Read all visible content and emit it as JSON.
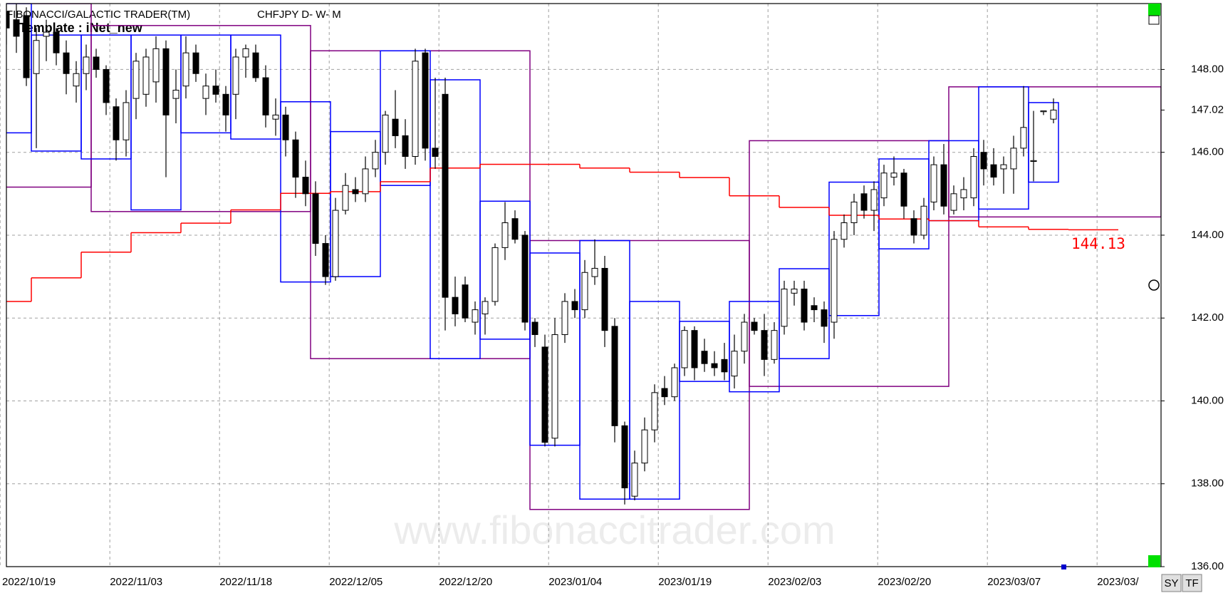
{
  "chart_data": {
    "type": "candlestick",
    "title": "FIBONACCI/GALACTIC TRADER(TM)",
    "symbol": "CHFJPY D- W- M",
    "template": "Template : iNet_new",
    "watermark": "www.fibonaccitrader.com",
    "categories": [
      "2022/10/19",
      null,
      null,
      null,
      null,
      null,
      null,
      null,
      null,
      null,
      null,
      "2022/11/03",
      null,
      null,
      null,
      null,
      null,
      null,
      null,
      null,
      null,
      null,
      "2022/11/18",
      null,
      null,
      null,
      null,
      null,
      null,
      null,
      null,
      null,
      null,
      "2022/12/05",
      null,
      null,
      null,
      null,
      null,
      null,
      null,
      null,
      null,
      null,
      "2022/12/20",
      null,
      null,
      null,
      null,
      null,
      null,
      null,
      null,
      null,
      null,
      "2023/01/04",
      null,
      null,
      null,
      null,
      null,
      null,
      null,
      null,
      null,
      null,
      "2023/01/19",
      null,
      null,
      null,
      null,
      null,
      null,
      null,
      null,
      null,
      null,
      "2023/02/03",
      null,
      null,
      null,
      null,
      null,
      null,
      null,
      null,
      null,
      null,
      "2023/02/20",
      null,
      null,
      null,
      null,
      null,
      null,
      null,
      null,
      null,
      null,
      "2023/03/07",
      null,
      null,
      null,
      null,
      null,
      null,
      null,
      null,
      null,
      null,
      "2023/03/",
      null
    ],
    "open": [
      149.4,
      149.2,
      149.3,
      147.9,
      148.8,
      148.9,
      148.4,
      147.6,
      147.9,
      148.3,
      148.0,
      147.1,
      146.3,
      147.3,
      147.4,
      147.7,
      148.5,
      147.3,
      147.6,
      148.4,
      147.3,
      147.6,
      147.4,
      147.4,
      148.3,
      148.4,
      147.8,
      146.8,
      146.9,
      146.3,
      145.4,
      145.0,
      143.8,
      143.0,
      144.6,
      145.1,
      145.0,
      145.6,
      146.0,
      146.8,
      146.4,
      145.9,
      148.4,
      146.1,
      147.4,
      142.5,
      142.8,
      141.9,
      142.1,
      142.4,
      143.7,
      144.4,
      144.0,
      141.9,
      141.3,
      139.1,
      141.6,
      142.4,
      142.2,
      143.0,
      143.2,
      141.8,
      139.4,
      137.7,
      138.5,
      139.3,
      140.3,
      140.1,
      140.8,
      141.7,
      141.2,
      140.9,
      141.0,
      140.6,
      141.2,
      141.9,
      141.7,
      141.0,
      141.8,
      142.6,
      142.7,
      142.3,
      142.2,
      141.9,
      143.9,
      144.3,
      145.0,
      144.6,
      144.9,
      145.4,
      145.5,
      144.4,
      144.0,
      144.8,
      145.7,
      144.6,
      144.9,
      144.9,
      146.0,
      145.7,
      145.6,
      145.6,
      146.1,
      145.8,
      147.0,
      146.8,
      null,
      null,
      null,
      null,
      null,
      null
    ],
    "high": [
      149.6,
      149.6,
      149.5,
      149.0,
      149.2,
      149.0,
      148.7,
      148.2,
      148.6,
      148.5,
      148.1,
      147.3,
      147.5,
      148.4,
      148.5,
      148.8,
      148.7,
      148.0,
      148.8,
      148.6,
      147.9,
      148.0,
      147.6,
      148.5,
      148.6,
      148.6,
      148.1,
      147.3,
      147.1,
      146.5,
      145.8,
      145.3,
      144.0,
      144.9,
      145.5,
      145.4,
      145.9,
      146.3,
      147.0,
      147.5,
      146.8,
      148.5,
      148.5,
      147.8,
      147.8,
      143.0,
      143.0,
      142.4,
      142.5,
      143.8,
      144.8,
      144.6,
      144.1,
      142.0,
      141.6,
      142.0,
      142.6,
      142.7,
      143.4,
      143.9,
      143.5,
      142.0,
      139.5,
      138.8,
      139.6,
      140.4,
      140.6,
      140.9,
      141.8,
      141.8,
      141.5,
      141.2,
      141.4,
      141.6,
      142.1,
      142.0,
      142.1,
      141.9,
      142.9,
      142.9,
      142.9,
      142.5,
      142.4,
      144.1,
      144.5,
      145.0,
      145.2,
      145.3,
      145.7,
      145.9,
      145.6,
      144.6,
      144.9,
      145.9,
      146.2,
      145.2,
      145.4,
      146.1,
      146.3,
      146.1,
      145.9,
      146.4,
      147.6,
      147.0,
      147.0,
      147.3,
      null,
      null,
      null,
      null,
      null,
      null
    ],
    "low": [
      148.6,
      148.4,
      147.6,
      146.1,
      148.2,
      148.1,
      147.4,
      147.2,
      147.5,
      147.8,
      146.9,
      145.8,
      145.9,
      146.8,
      147.1,
      147.2,
      145.4,
      146.7,
      147.3,
      147.7,
      146.9,
      147.2,
      146.5,
      146.8,
      147.8,
      147.7,
      146.6,
      146.4,
      145.9,
      144.9,
      144.7,
      143.5,
      142.8,
      142.9,
      144.5,
      144.8,
      144.8,
      145.4,
      145.7,
      146.1,
      145.6,
      145.7,
      145.8,
      145.6,
      141.7,
      141.8,
      141.9,
      141.6,
      141.6,
      142.3,
      143.4,
      143.8,
      141.7,
      141.3,
      138.9,
      138.9,
      141.4,
      142.0,
      142.0,
      142.8,
      141.3,
      139.0,
      137.5,
      137.6,
      138.3,
      139.0,
      139.9,
      140.0,
      140.6,
      140.5,
      140.7,
      140.6,
      140.5,
      140.3,
      140.9,
      141.6,
      140.6,
      140.9,
      141.6,
      142.3,
      141.7,
      141.9,
      141.4,
      141.5,
      143.7,
      144.0,
      144.4,
      144.1,
      144.7,
      145.2,
      144.4,
      143.8,
      143.9,
      144.6,
      144.5,
      144.5,
      144.6,
      144.7,
      145.2,
      145.2,
      145.0,
      145.0,
      145.9,
      145.3,
      146.9,
      146.7,
      null,
      null,
      null,
      null,
      null,
      null
    ],
    "close": [
      149.0,
      148.8,
      147.8,
      148.7,
      148.9,
      148.4,
      147.9,
      147.9,
      148.3,
      148.0,
      147.2,
      146.3,
      147.2,
      148.2,
      148.3,
      148.5,
      146.9,
      147.5,
      148.4,
      147.9,
      147.6,
      147.4,
      146.9,
      148.3,
      148.5,
      147.8,
      146.9,
      146.9,
      146.3,
      145.4,
      145.0,
      143.8,
      143.0,
      144.6,
      145.2,
      145.0,
      145.6,
      146.0,
      146.9,
      146.4,
      145.9,
      148.2,
      146.1,
      145.9,
      142.5,
      142.1,
      142.0,
      142.2,
      142.4,
      143.7,
      144.3,
      143.9,
      141.9,
      141.6,
      139.0,
      141.6,
      142.4,
      142.2,
      143.1,
      143.2,
      141.7,
      139.4,
      137.9,
      138.5,
      139.3,
      140.2,
      140.1,
      140.8,
      141.7,
      140.8,
      140.9,
      140.8,
      140.7,
      141.2,
      141.9,
      141.7,
      141.0,
      141.7,
      142.7,
      142.7,
      141.9,
      142.2,
      141.8,
      143.9,
      144.3,
      144.8,
      144.6,
      145.1,
      145.5,
      145.5,
      144.7,
      144.0,
      144.7,
      145.7,
      144.7,
      145.0,
      145.1,
      145.9,
      145.6,
      145.4,
      145.7,
      146.1,
      146.6,
      145.8,
      147.0,
      147.02,
      null,
      null,
      null,
      null,
      null,
      null
    ],
    "ylim": [
      136,
      149.59
    ],
    "yticks": [
      {
        "value": 136,
        "label": "136.00"
      },
      {
        "value": 138,
        "label": "138.00"
      },
      {
        "value": 140,
        "label": "140.00"
      },
      {
        "value": 142,
        "label": "142.00"
      },
      {
        "value": 144,
        "label": "144.00"
      },
      {
        "value": 146,
        "label": "146.00"
      },
      {
        "value": 148,
        "label": "148.00"
      }
    ],
    "grid": true,
    "last_price": 147.02,
    "weekly_boxes": {
      "color": "#0000ff",
      "high": [
        149.59,
        148.83,
        148.83,
        148.83,
        148.83,
        148.83,
        147.22,
        146.5,
        148.45,
        147.75,
        144.82,
        143.57,
        143.87,
        142.4,
        141.92,
        142.4,
        143.19,
        145.28,
        145.84,
        146.28,
        147.58,
        147.2
      ],
      "low": [
        146.47,
        146.03,
        145.84,
        144.61,
        146.47,
        146.32,
        142.87,
        143.0,
        145.2,
        141.02,
        141.49,
        138.93,
        137.63,
        137.63,
        140.47,
        140.22,
        141.02,
        142.06,
        143.67,
        144.35,
        144.63,
        145.28
      ]
    },
    "monthly_boxes": {
      "color": "#800080",
      "high": [
        149.59,
        149.06,
        148.45,
        143.87,
        146.28,
        147.58
      ],
      "low": [
        145.16,
        144.57,
        141.02,
        137.38,
        140.35,
        144.44
      ]
    },
    "red_line": {
      "color": "#ff0000",
      "values": [
        142.4,
        142.4,
        142.4,
        142.97,
        142.97,
        142.97,
        142.97,
        142.97,
        143.59,
        143.59,
        143.59,
        143.59,
        143.59,
        144.06,
        144.06,
        144.06,
        144.06,
        144.06,
        144.29,
        144.29,
        144.29,
        144.29,
        144.29,
        144.61,
        144.61,
        144.61,
        144.61,
        144.61,
        145.01,
        145.01,
        145.01,
        145.01,
        145.01,
        145.05,
        145.05,
        145.05,
        145.05,
        145.05,
        145.29,
        145.29,
        145.29,
        145.29,
        145.29,
        145.62,
        145.62,
        145.62,
        145.62,
        145.62,
        145.71,
        145.71,
        145.71,
        145.71,
        145.71,
        145.71,
        145.71,
        145.71,
        145.71,
        145.71,
        145.62,
        145.62,
        145.62,
        145.62,
        145.62,
        145.52,
        145.52,
        145.52,
        145.52,
        145.52,
        145.39,
        145.39,
        145.39,
        145.39,
        145.39,
        144.95,
        144.95,
        144.95,
        144.95,
        144.95,
        144.67,
        144.67,
        144.67,
        144.67,
        144.67,
        144.48,
        144.48,
        144.48,
        144.48,
        144.48,
        144.39,
        144.39,
        144.39,
        144.39,
        144.39,
        144.35,
        144.35,
        144.35,
        144.35,
        144.35,
        144.2,
        144.2,
        144.2,
        144.2,
        144.2,
        144.14,
        144.14,
        144.14,
        144.14,
        144.13,
        144.13,
        144.13,
        144.13,
        144.13
      ]
    },
    "red_line_label": 144.13,
    "buttons": [
      "SY",
      "TF"
    ]
  }
}
